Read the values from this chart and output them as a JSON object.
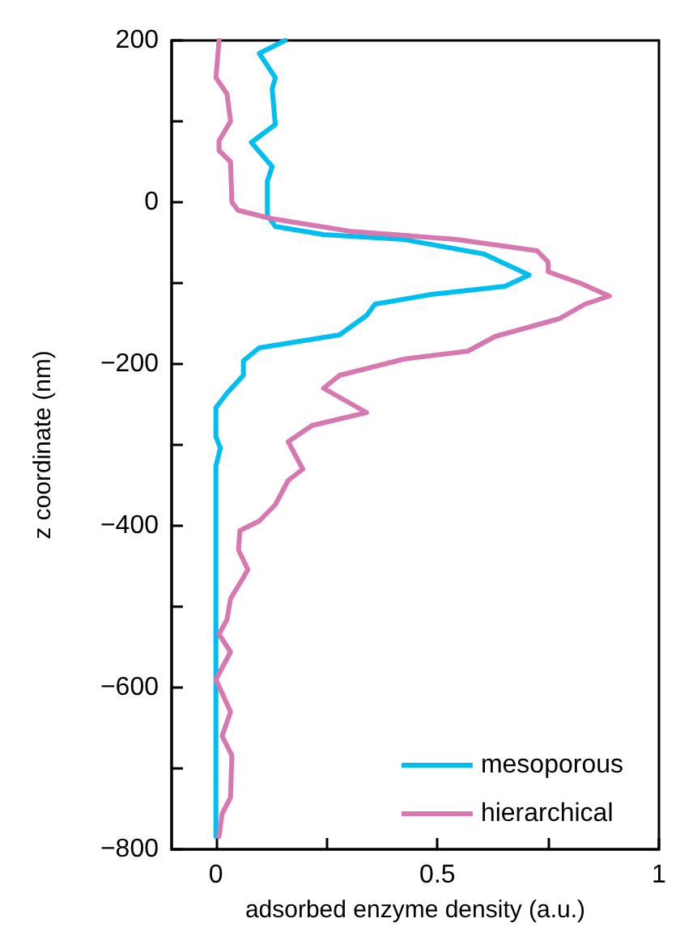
{
  "chart_data": {
    "type": "line",
    "xlabel": "adsorbed enzyme density (a.u.)",
    "ylabel": "z coordinate (nm)",
    "xlim": [
      -0.1,
      1
    ],
    "xticks": [
      0,
      {
        "value": 0.25,
        "label": null
      },
      0.5,
      {
        "value": 0.75,
        "label": null
      },
      1
    ],
    "ylim": [
      -800,
      200
    ],
    "yticks": [
      {
        "value": -800,
        "label": "−800"
      },
      {
        "value": -700,
        "label": null
      },
      {
        "value": -600,
        "label": "−600"
      },
      {
        "value": -500,
        "label": null
      },
      {
        "value": -400,
        "label": "−400"
      },
      {
        "value": -300,
        "label": null
      },
      {
        "value": -200,
        "label": "−200"
      },
      {
        "value": -100,
        "label": null
      },
      0,
      {
        "value": 100,
        "label": null
      },
      200
    ],
    "grid": false,
    "legend": "bottom right",
    "marker": "none",
    "line_style": "solid",
    "series": [
      {
        "name": "mesoporous",
        "color": "#00bff0",
        "x": [
          0.156,
          0.098,
          0.134,
          0.127,
          0.134,
          0.08,
          0.127,
          0.116,
          0.116,
          0.134,
          0.243,
          0.424,
          0.605,
          0.707,
          0.652,
          0.486,
          0.359,
          0.34,
          0.279,
          0.098,
          0.062,
          0.062,
          0.025,
          0,
          0,
          0.01,
          0,
          0
        ],
        "values": [
          200,
          184,
          154,
          140,
          96,
          74,
          44,
          26,
          -16,
          -30,
          -40,
          -46,
          -64,
          -90,
          -104,
          -114,
          -126,
          -140,
          -164,
          -180,
          -196,
          -214,
          -236,
          -254,
          -290,
          -304,
          -326,
          -784
        ]
      },
      {
        "name": "hierarchical",
        "color": "#d878b0",
        "x": [
          0.007,
          0,
          0.025,
          0.033,
          0.007,
          0.007,
          0.033,
          0.036,
          0.05,
          0.123,
          0.304,
          0.543,
          0.725,
          0.75,
          0.75,
          0.822,
          0.888,
          0.833,
          0.775,
          0.63,
          0.569,
          0.424,
          0.279,
          0.243,
          0.34,
          0.217,
          0.163,
          0.196,
          0.163,
          0.134,
          0.098,
          0.054,
          0.051,
          0.072,
          0.062,
          0.033,
          0.025,
          0.007,
          0.033,
          0,
          0.033,
          0.014,
          0.036,
          0.033,
          0.014,
          0.007
        ],
        "values": [
          200,
          154,
          134,
          100,
          76,
          64,
          50,
          0,
          -10,
          -20,
          -36,
          -46,
          -60,
          -74,
          -86,
          -100,
          -116,
          -126,
          -144,
          -166,
          -184,
          -194,
          -214,
          -230,
          -260,
          -276,
          -296,
          -330,
          -344,
          -374,
          -394,
          -406,
          -430,
          -454,
          -464,
          -490,
          -516,
          -534,
          -556,
          -590,
          -630,
          -660,
          -684,
          -736,
          -756,
          -784
        ]
      }
    ]
  }
}
